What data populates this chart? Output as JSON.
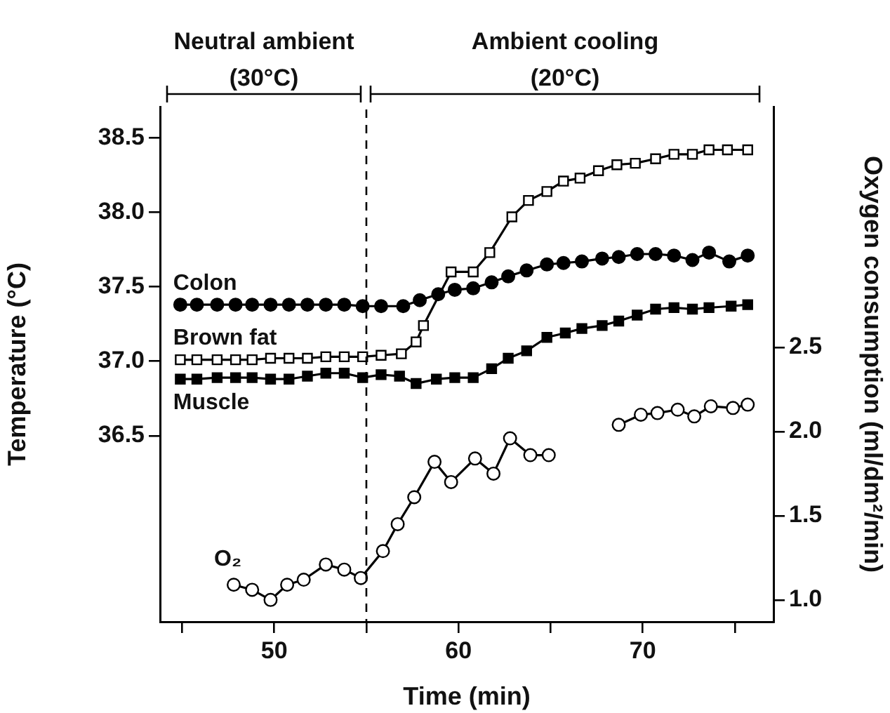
{
  "chart_data": {
    "type": "line",
    "xlabel": "Time (min)",
    "ylabel": "Temperature (°C)",
    "y2label": "Oxygen consumption (ml/dm²/min)",
    "xlim": [
      43.8,
      77.1
    ],
    "xticks": [
      {
        "value": 45,
        "label": null
      },
      50,
      {
        "value": 55,
        "label": null
      },
      60,
      {
        "value": 65,
        "label": null
      },
      70,
      {
        "value": 75,
        "label": null
      }
    ],
    "ylim": [
      35.25,
      38.71
    ],
    "yticks": [
      36.5,
      {
        "value": 37,
        "label": "37.0"
      },
      37.5,
      {
        "value": 38,
        "label": "38.0"
      },
      38.5
    ],
    "y2lim": [
      0.87,
      3.93
    ],
    "y2ticks": [
      {
        "value": 1,
        "label": "1.0"
      },
      1.5,
      {
        "value": 2,
        "label": "2.0"
      },
      2.5
    ],
    "grid": false,
    "legend": false,
    "line_style": "solid",
    "ref_lines": [
      {
        "axis": "x",
        "value": 55,
        "line_style": "dashed",
        "color": "#000000"
      }
    ],
    "annotations": [
      "Neutral ambient (30°C)",
      "Ambient cooling (20°C)"
    ],
    "series": [
      {
        "name": "Colon",
        "color": "#000000",
        "marker": "circle",
        "x": [
          44.9,
          45.8,
          46.9,
          47.9,
          48.8,
          49.8,
          50.8,
          51.8,
          52.8,
          53.8,
          54.8,
          55.8,
          57.0,
          57.9,
          58.9,
          59.8,
          60.8,
          61.8,
          62.7,
          63.7,
          64.8,
          65.7,
          66.7,
          67.8,
          68.7,
          69.7,
          70.7,
          71.7,
          72.7,
          73.6,
          74.7,
          75.7
        ],
        "values": [
          37.38,
          37.38,
          37.38,
          37.38,
          37.38,
          37.38,
          37.38,
          37.38,
          37.38,
          37.38,
          37.37,
          37.37,
          37.37,
          37.41,
          37.45,
          37.48,
          37.49,
          37.53,
          37.57,
          37.61,
          37.65,
          37.66,
          37.67,
          37.69,
          37.7,
          37.72,
          37.72,
          37.71,
          37.68,
          37.73,
          37.67,
          37.71
        ]
      },
      {
        "name": "Brown fat",
        "color": "#000000",
        "marker": "square",
        "colors": [
          "#ffffff",
          "#ffffff",
          "#ffffff",
          "#ffffff",
          "#ffffff",
          "#ffffff",
          "#ffffff",
          "#ffffff",
          "#ffffff",
          "#ffffff",
          "#ffffff",
          "#ffffff",
          "#ffffff",
          "#ffffff",
          "#ffffff",
          "#ffffff",
          "#ffffff",
          "#ffffff",
          "#ffffff",
          "#ffffff",
          "#ffffff",
          "#ffffff",
          "#ffffff",
          "#ffffff",
          "#ffffff",
          "#ffffff",
          "#ffffff",
          "#ffffff",
          "#ffffff",
          "#ffffff",
          "#ffffff",
          "#ffffff"
        ],
        "x": [
          44.9,
          45.8,
          46.9,
          47.9,
          48.8,
          49.8,
          50.8,
          51.8,
          52.8,
          53.8,
          54.8,
          55.8,
          56.9,
          57.7,
          58.1,
          59.6,
          60.8,
          61.7,
          62.9,
          63.8,
          64.8,
          65.7,
          66.6,
          67.6,
          68.6,
          69.6,
          70.7,
          71.7,
          72.7,
          73.6,
          74.6,
          75.7
        ],
        "values": [
          37.01,
          37.01,
          37.01,
          37.01,
          37.01,
          37.02,
          37.02,
          37.02,
          37.03,
          37.03,
          37.03,
          37.04,
          37.05,
          37.13,
          37.24,
          37.6,
          37.6,
          37.73,
          37.97,
          38.08,
          38.14,
          38.21,
          38.23,
          38.28,
          38.32,
          38.33,
          38.36,
          38.39,
          38.39,
          38.42,
          38.42,
          38.42
        ]
      },
      {
        "name": "Muscle",
        "color": "#000000",
        "marker": "square",
        "x": [
          44.9,
          45.8,
          46.9,
          47.9,
          48.8,
          49.8,
          50.8,
          51.8,
          52.8,
          53.8,
          54.8,
          55.8,
          56.8,
          57.7,
          58.8,
          59.8,
          60.8,
          61.8,
          62.7,
          63.7,
          64.8,
          65.8,
          66.7,
          67.8,
          68.7,
          69.7,
          70.7,
          71.7,
          72.7,
          73.6,
          74.8,
          75.7
        ],
        "values": [
          36.88,
          36.88,
          36.89,
          36.89,
          36.89,
          36.88,
          36.88,
          36.9,
          36.92,
          36.92,
          36.89,
          36.91,
          36.9,
          36.85,
          36.88,
          36.89,
          36.89,
          36.95,
          37.02,
          37.07,
          37.16,
          37.19,
          37.22,
          37.24,
          37.27,
          37.31,
          37.35,
          37.36,
          37.35,
          37.36,
          37.37,
          37.38
        ]
      },
      {
        "name": "O₂",
        "color": "#000000",
        "marker": "circle",
        "axis": "y2",
        "colors": [
          "#ffffff",
          "#ffffff",
          "#ffffff",
          "#ffffff",
          "#ffffff",
          "#ffffff",
          "#ffffff",
          "#ffffff",
          "#ffffff",
          "#ffffff",
          "#ffffff",
          "#ffffff",
          "#ffffff",
          "#ffffff",
          "#ffffff",
          "#ffffff",
          "#ffffff",
          "#ffffff",
          null,
          "#ffffff",
          "#ffffff",
          "#ffffff",
          "#ffffff",
          "#ffffff",
          "#ffffff",
          "#ffffff",
          "#ffffff"
        ],
        "x": [
          47.8,
          48.8,
          49.8,
          50.7,
          51.6,
          52.8,
          53.8,
          54.7,
          55.9,
          56.7,
          57.6,
          58.7,
          59.6,
          60.9,
          61.9,
          62.8,
          63.9,
          64.9,
          67.3,
          68.7,
          69.9,
          70.8,
          71.9,
          72.8,
          73.7,
          74.9,
          75.7
        ],
        "values": [
          1.09,
          1.06,
          1.0,
          1.09,
          1.12,
          1.21,
          1.18,
          1.13,
          1.29,
          1.45,
          1.61,
          1.82,
          1.7,
          1.84,
          1.75,
          1.96,
          1.86,
          1.86,
          null,
          2.04,
          2.1,
          2.11,
          2.13,
          2.09,
          2.15,
          2.14,
          2.16
        ]
      }
    ]
  }
}
